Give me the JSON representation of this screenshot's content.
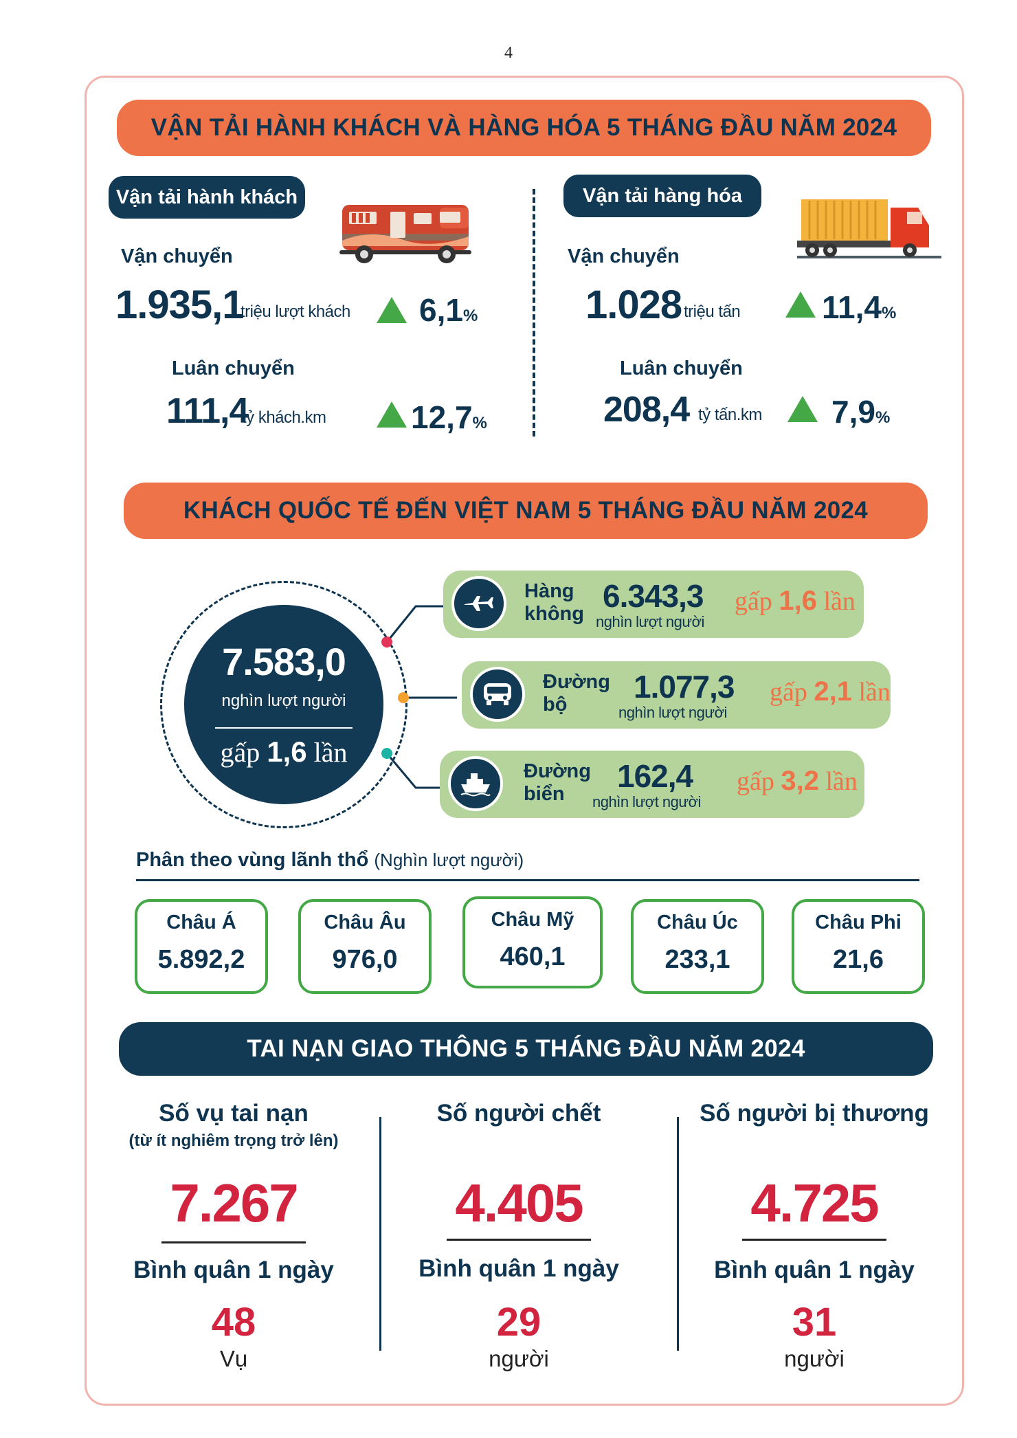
{
  "page_number": "4",
  "transport": {
    "banner": "VẬN TẢI HÀNH KHÁCH VÀ HÀNG HÓA 5 THÁNG ĐẦU NĂM 2024",
    "passenger": {
      "pill": "Vận tải hành khách",
      "carried_label": "Vận chuyển",
      "carried_value": "1.935,1",
      "carried_unit": "triệu lượt khách",
      "carried_growth": "6,1",
      "rotation_label": "Luân chuyển",
      "rotation_value": "111,4",
      "rotation_unit": "tỷ khách.km",
      "rotation_growth": "12,7"
    },
    "freight": {
      "pill": "Vận tải hàng hóa",
      "carried_label": "Vận chuyển",
      "carried_value": "1.028",
      "carried_unit": "triệu tấn",
      "carried_growth": "11,4",
      "rotation_label": "Luân chuyển",
      "rotation_value": "208,4",
      "rotation_unit": "tỷ tấn.km",
      "rotation_growth": "7,9"
    },
    "percent_sign": "%"
  },
  "international": {
    "banner": "KHÁCH QUỐC TẾ ĐẾN VIỆT NAM 5 THÁNG ĐẦU NĂM 2024",
    "total_value": "7.583,0",
    "total_unit": "nghìn lượt người",
    "mult_prefix": "gấp",
    "mult_suffix": "lần",
    "total_mult": "1,6",
    "modes": [
      {
        "name_1": "Hàng",
        "name_2": "không",
        "value": "6.343,3",
        "unit": "nghìn lượt người",
        "mult": "1,6",
        "icon": "airplane-icon"
      },
      {
        "name_1": "Đường",
        "name_2": "bộ",
        "value": "1.077,3",
        "unit": "nghìn lượt người",
        "mult": "2,1",
        "icon": "bus-icon"
      },
      {
        "name_1": "Đường",
        "name_2": "biển",
        "value": "162,4",
        "unit": "nghìn lượt người",
        "mult": "3,2",
        "icon": "ship-icon"
      }
    ],
    "region_title": "Phân theo vùng lãnh thổ",
    "region_unit": "(Nghìn lượt người)",
    "regions": [
      {
        "name": "Châu Á",
        "value": "5.892,2"
      },
      {
        "name": "Châu Âu",
        "value": "976,0"
      },
      {
        "name": "Châu Mỹ",
        "value": "460,1"
      },
      {
        "name": "Châu Úc",
        "value": "233,1"
      },
      {
        "name": "Châu Phi",
        "value": "21,6"
      }
    ]
  },
  "accidents": {
    "banner": "TAI NẠN GIAO THÔNG 5 THÁNG ĐẦU NĂM 2024",
    "avg_label": "Bình quân 1 ngày",
    "columns": [
      {
        "title": "Số vụ tai nạn",
        "subtitle": "(từ ít nghiêm trọng trở lên)",
        "value": "7.267",
        "daily": "48",
        "daily_unit": "Vụ"
      },
      {
        "title": "Số người chết",
        "subtitle": "",
        "value": "4.405",
        "daily": "29",
        "daily_unit": "người"
      },
      {
        "title": "Số người bị thương",
        "subtitle": "",
        "value": "4.725",
        "daily": "31",
        "daily_unit": "người"
      }
    ]
  },
  "colors": {
    "navy": "#123a54",
    "orange": "#ef7348",
    "green": "#43a845",
    "light_green": "#b5d49b",
    "red": "#d3243f",
    "frame_pink": "#f1b4ad"
  }
}
